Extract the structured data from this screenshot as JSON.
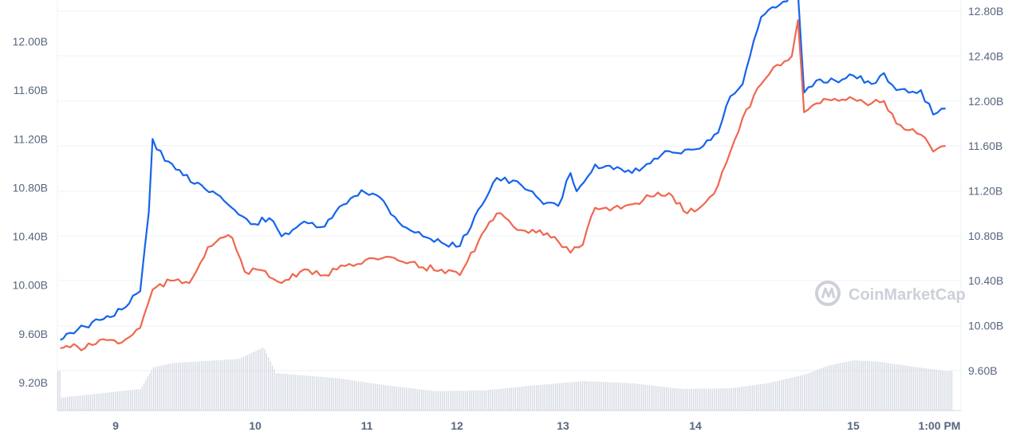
{
  "chart_data": {
    "type": "line",
    "watermark": "CoinMarketCap",
    "x_labels": [
      "9",
      "10",
      "11",
      "12",
      "13",
      "14",
      "15",
      "1:00 PM"
    ],
    "left_axis": {
      "tick_labels": [
        "9.20B",
        "9.60B",
        "10.00B",
        "10.40B",
        "10.80B",
        "11.20B",
        "11.60B",
        "12.00B"
      ],
      "range": [
        9.0,
        12.4
      ]
    },
    "right_axis": {
      "tick_labels": [
        "9.60B",
        "10.00B",
        "10.40B",
        "10.80B",
        "11.20B",
        "11.60B",
        "12.00B",
        "12.40B",
        "12.80B"
      ],
      "range": [
        9.33,
        12.81
      ]
    },
    "series": [
      {
        "axis": "left",
        "color": "#1664ea",
        "points": [
          [
            8.55,
            9.55
          ],
          [
            8.6,
            9.6
          ],
          [
            8.75,
            9.66
          ],
          [
            8.9,
            9.72
          ],
          [
            9.05,
            9.8
          ],
          [
            9.2,
            9.95
          ],
          [
            9.27,
            10.6
          ],
          [
            9.3,
            11.2
          ],
          [
            9.4,
            11.02
          ],
          [
            9.55,
            10.9
          ],
          [
            9.7,
            10.82
          ],
          [
            9.85,
            10.73
          ],
          [
            10.0,
            10.58
          ],
          [
            10.1,
            10.5
          ],
          [
            10.25,
            10.55
          ],
          [
            10.35,
            10.4
          ],
          [
            10.5,
            10.5
          ],
          [
            10.7,
            10.48
          ],
          [
            10.85,
            10.66
          ],
          [
            11.0,
            10.78
          ],
          [
            11.15,
            10.72
          ],
          [
            11.3,
            10.52
          ],
          [
            11.5,
            10.4
          ],
          [
            11.65,
            10.35
          ],
          [
            11.8,
            10.32
          ],
          [
            11.95,
            10.62
          ],
          [
            12.1,
            10.88
          ],
          [
            12.3,
            10.82
          ],
          [
            12.45,
            10.7
          ],
          [
            12.6,
            10.65
          ],
          [
            12.7,
            10.92
          ],
          [
            12.75,
            10.77
          ],
          [
            12.9,
            10.99
          ],
          [
            13.05,
            10.95
          ],
          [
            13.2,
            10.92
          ],
          [
            13.35,
            11.0
          ],
          [
            13.5,
            11.1
          ],
          [
            13.6,
            11.08
          ],
          [
            13.75,
            11.12
          ],
          [
            13.9,
            11.25
          ],
          [
            14.0,
            11.55
          ],
          [
            14.1,
            11.65
          ],
          [
            14.25,
            12.2
          ],
          [
            14.4,
            12.3
          ],
          [
            14.55,
            12.4
          ],
          [
            14.6,
            11.58
          ],
          [
            14.7,
            11.68
          ],
          [
            14.85,
            11.68
          ],
          [
            15.0,
            11.72
          ],
          [
            15.15,
            11.65
          ],
          [
            15.25,
            11.74
          ],
          [
            15.35,
            11.6
          ],
          [
            15.45,
            11.58
          ],
          [
            15.55,
            11.6
          ],
          [
            15.65,
            11.4
          ],
          [
            15.75,
            11.45
          ]
        ]
      },
      {
        "axis": "right",
        "color": "#f0674f",
        "points": [
          [
            8.55,
            9.8
          ],
          [
            8.6,
            9.82
          ],
          [
            8.75,
            9.8
          ],
          [
            8.9,
            9.88
          ],
          [
            9.05,
            9.85
          ],
          [
            9.2,
            9.98
          ],
          [
            9.3,
            10.32
          ],
          [
            9.45,
            10.4
          ],
          [
            9.6,
            10.38
          ],
          [
            9.75,
            10.7
          ],
          [
            9.85,
            10.78
          ],
          [
            9.95,
            10.78
          ],
          [
            10.05,
            10.48
          ],
          [
            10.15,
            10.5
          ],
          [
            10.35,
            10.38
          ],
          [
            10.5,
            10.48
          ],
          [
            10.7,
            10.45
          ],
          [
            10.9,
            10.55
          ],
          [
            11.1,
            10.6
          ],
          [
            11.3,
            10.58
          ],
          [
            11.5,
            10.52
          ],
          [
            11.65,
            10.5
          ],
          [
            11.8,
            10.45
          ],
          [
            11.95,
            10.75
          ],
          [
            12.1,
            11.0
          ],
          [
            12.3,
            10.85
          ],
          [
            12.45,
            10.85
          ],
          [
            12.6,
            10.75
          ],
          [
            12.7,
            10.65
          ],
          [
            12.8,
            10.72
          ],
          [
            12.9,
            11.05
          ],
          [
            13.05,
            11.05
          ],
          [
            13.2,
            11.08
          ],
          [
            13.35,
            11.15
          ],
          [
            13.5,
            11.18
          ],
          [
            13.65,
            11.0
          ],
          [
            13.8,
            11.1
          ],
          [
            13.9,
            11.25
          ],
          [
            14.0,
            11.55
          ],
          [
            14.1,
            11.85
          ],
          [
            14.25,
            12.15
          ],
          [
            14.35,
            12.3
          ],
          [
            14.5,
            12.4
          ],
          [
            14.55,
            12.72
          ],
          [
            14.6,
            11.9
          ],
          [
            14.7,
            11.98
          ],
          [
            14.85,
            12.02
          ],
          [
            15.0,
            12.02
          ],
          [
            15.15,
            11.98
          ],
          [
            15.25,
            12.0
          ],
          [
            15.35,
            11.8
          ],
          [
            15.45,
            11.74
          ],
          [
            15.55,
            11.7
          ],
          [
            15.65,
            11.55
          ],
          [
            15.75,
            11.6
          ]
        ]
      }
    ],
    "volume_relative": [
      [
        8.55,
        0.18
      ],
      [
        9.2,
        0.3
      ],
      [
        9.3,
        0.6
      ],
      [
        9.45,
        0.66
      ],
      [
        10.0,
        0.72
      ],
      [
        10.2,
        0.88
      ],
      [
        10.3,
        0.52
      ],
      [
        10.8,
        0.45
      ],
      [
        11.2,
        0.35
      ],
      [
        11.6,
        0.27
      ],
      [
        12.0,
        0.28
      ],
      [
        12.4,
        0.35
      ],
      [
        12.8,
        0.41
      ],
      [
        13.2,
        0.38
      ],
      [
        13.6,
        0.3
      ],
      [
        14.0,
        0.31
      ],
      [
        14.3,
        0.38
      ],
      [
        14.6,
        0.5
      ],
      [
        14.8,
        0.63
      ],
      [
        15.0,
        0.7
      ],
      [
        15.2,
        0.68
      ],
      [
        15.45,
        0.62
      ],
      [
        15.75,
        0.55
      ]
    ],
    "grid": true,
    "legend": "none"
  }
}
